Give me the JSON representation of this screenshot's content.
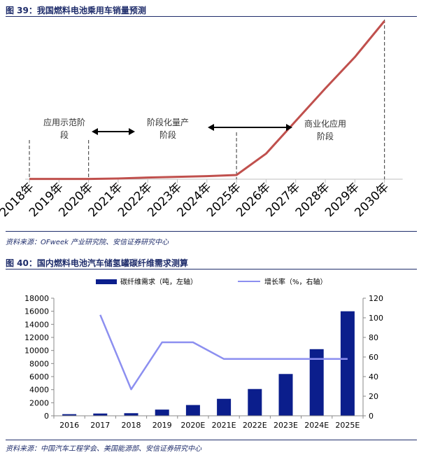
{
  "figure1": {
    "title": "图 39：我国燃料电池乘用车销量预测",
    "source": "资料来源：OFweek 产业研究院、安信证券研究中心"
  },
  "figure2": {
    "title": "图 40：国内燃料电池汽车储氢罐碳纤维需求测算",
    "source": "资料来源：中国汽车工程学会、美国能源部、安信证券研究中心"
  },
  "chart_data": [
    {
      "type": "line",
      "title": "我国燃料电池乘用车销量预测",
      "categories": [
        "2018年",
        "2019年",
        "2020年",
        "2021年",
        "2022年",
        "2023年",
        "2024年",
        "2025年",
        "2026年",
        "2027年",
        "2028年",
        "2029年",
        "2030年"
      ],
      "series": [
        {
          "values": [
            1,
            1,
            1,
            3,
            7,
            10,
            13,
            18,
            110,
            250,
            390,
            525,
            680
          ],
          "color": "#c0504d"
        }
      ],
      "y_axis_visible": false,
      "stage_markers": [
        "2018年",
        "2020年",
        "2025年",
        "2030年"
      ],
      "annotations": [
        {
          "text": "应用示范阶段"
        },
        {
          "text": "阶段化量产阶段"
        },
        {
          "text": "商业化应用阶段"
        }
      ]
    },
    {
      "type": "bar",
      "title": "国内燃料电池汽车储氢罐碳纤维需求测算",
      "categories": [
        "2016",
        "2017",
        "2018",
        "2019",
        "2020E",
        "2021E",
        "2022E",
        "2023E",
        "2024E",
        "2025E"
      ],
      "series": [
        {
          "name": "碳纤维需求（吨，左轴）",
          "type": "bar",
          "axis": "left",
          "color": "#0b1e8c",
          "values": [
            250,
            350,
            400,
            950,
            1650,
            2600,
            4100,
            6400,
            10200,
            16000
          ]
        },
        {
          "name": "增长率（%，右轴）",
          "type": "line",
          "axis": "right",
          "color": "#8c8ff0",
          "values": [
            null,
            103,
            27,
            75,
            75,
            58,
            58,
            58,
            58,
            58
          ]
        }
      ],
      "ylim_left": [
        0,
        18000
      ],
      "yticks_left": [
        "0",
        "2000",
        "4000",
        "6000",
        "8000",
        "10000",
        "12000",
        "14000",
        "16000",
        "18000"
      ],
      "ylim_right": [
        0,
        120
      ],
      "yticks_right": [
        "0",
        "20",
        "40",
        "60",
        "80",
        "100",
        "120"
      ],
      "legend_position": "top"
    }
  ]
}
